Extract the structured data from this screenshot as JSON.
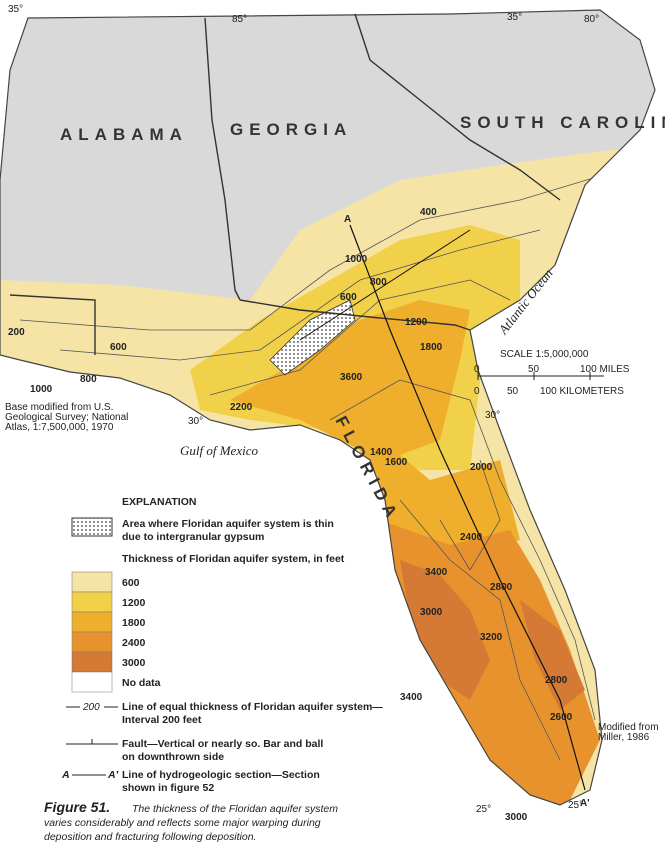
{
  "map": {
    "states": [
      "ALABAMA",
      "GEORGIA",
      "SOUTH CAROLINA",
      "FLORIDA"
    ],
    "water": [
      "Gulf of Mexico",
      "Atlantic Ocean"
    ],
    "coordinates": [
      "35°",
      "85°",
      "35°",
      "80°",
      "30°",
      "30°",
      "25°",
      "25°"
    ],
    "contours": [
      "200",
      "400",
      "600",
      "800",
      "1000",
      "1200",
      "1400",
      "1600",
      "1800",
      "2000",
      "2200",
      "2400",
      "2600",
      "2800",
      "3000",
      "3200",
      "3400",
      "3600",
      "600",
      "800",
      "1000",
      "2800",
      "3400",
      "3000"
    ]
  },
  "section_labels": [
    "A",
    "A'"
  ],
  "scale": {
    "title": "SCALE 1:5,000,000",
    "miles": [
      "0",
      "50",
      "100 MILES"
    ],
    "km": [
      "0",
      "50",
      "100 KILOMETERS"
    ]
  },
  "base_note": [
    "Base modified from U.S.",
    "Geological Survey; National",
    "Atlas, 1:7,500,000, 1970"
  ],
  "source_note": [
    "Modified from",
    "Miller, 1986"
  ],
  "legend": {
    "title": "EXPLANATION",
    "gypsum": [
      "Area where Floridan aquifer system is thin",
      "due to intergranular gypsum"
    ],
    "thickness_title": "Thickness of Floridan aquifer system, in feet",
    "classes": [
      {
        "label": "600",
        "color": "#f5e4a6"
      },
      {
        "label": "1200",
        "color": "#f1d04a"
      },
      {
        "label": "1800",
        "color": "#efaf2c"
      },
      {
        "label": "2400",
        "color": "#e8922e"
      },
      {
        "label": "3000",
        "color": "#d47a35"
      }
    ],
    "no_data": {
      "label": "No data",
      "color": "#ffffff"
    },
    "contour": {
      "sample": "200",
      "text": [
        "Line of equal thickness of Floridan aquifer system—",
        "Interval 200 feet"
      ]
    },
    "fault": [
      "Fault—Vertical or nearly so. Bar and ball",
      "on downthrown side"
    ],
    "section": {
      "a": "A",
      "a_prime": "A′",
      "text": [
        "Line of hydrogeologic section—Section",
        "shown in figure 52"
      ]
    }
  },
  "caption": {
    "label": "Figure 51.",
    "lines": [
      "The thickness of the Floridan aquifer system",
      "varies considerably and reflects some major warping during",
      "deposition and fracturing following deposition."
    ]
  }
}
